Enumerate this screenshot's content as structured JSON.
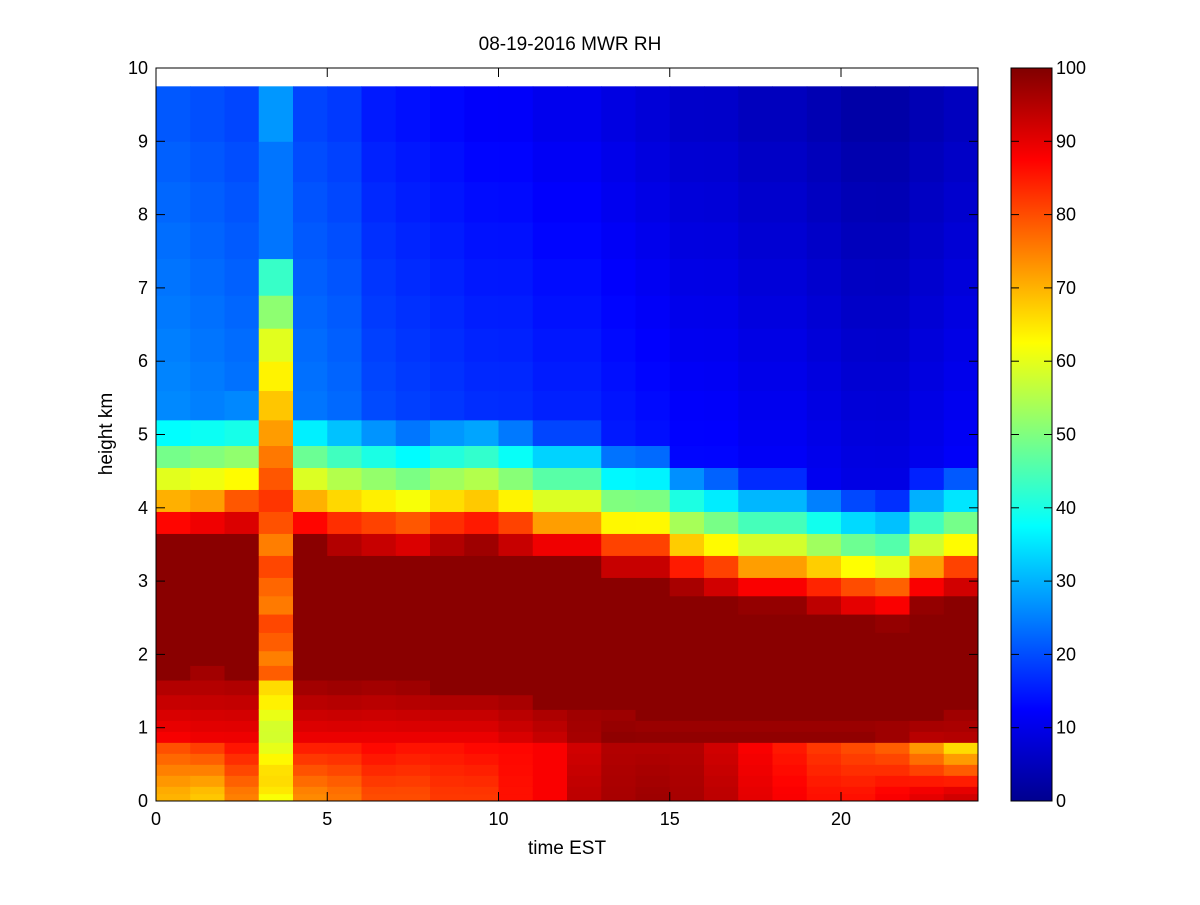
{
  "chart_data": {
    "type": "heatmap",
    "title": "08-19-2016 MWR RH",
    "xlabel": "time EST",
    "ylabel": "height km",
    "xlim": [
      0,
      24
    ],
    "ylim": [
      0,
      10
    ],
    "xticks": [
      0,
      5,
      10,
      15,
      20
    ],
    "yticks": [
      0,
      1,
      2,
      3,
      4,
      5,
      6,
      7,
      8,
      9,
      10
    ],
    "colorbar": {
      "min": 0,
      "max": 100,
      "ticks": [
        0,
        10,
        20,
        30,
        40,
        50,
        60,
        70,
        80,
        90,
        100
      ],
      "colormap": "jet"
    },
    "time_start": 0,
    "time_step": 1,
    "time_bins": 24,
    "height_top": 9.75,
    "height_levels_km": [
      0,
      0.1,
      0.2,
      0.35,
      0.5,
      0.65,
      0.8,
      0.95,
      1.1,
      1.25,
      1.45,
      1.65,
      1.85,
      2.05,
      2.3,
      2.55,
      2.8,
      3.05,
      3.35,
      3.65,
      3.95,
      4.25,
      4.55,
      4.85,
      5.2,
      5.6,
      6.0,
      6.45,
      6.9,
      7.4,
      7.9,
      8.45,
      9.0,
      9.75
    ],
    "peak_low_rh": [
      80,
      82,
      86,
      35,
      85,
      85,
      87,
      86,
      86,
      87,
      87,
      88,
      92,
      95,
      95,
      95,
      92,
      88,
      85,
      82,
      80,
      78,
      72,
      65
    ],
    "surface_rh": [
      70,
      68,
      75,
      62,
      74,
      76,
      80,
      80,
      82,
      82,
      86,
      88,
      94,
      96,
      97,
      96,
      94,
      90,
      88,
      86,
      86,
      88,
      90,
      92
    ],
    "low_dip_rh": [
      87,
      88,
      88,
      65,
      88,
      88,
      88,
      88,
      88,
      88,
      90,
      92,
      96,
      99,
      99,
      99,
      99,
      99,
      99,
      99,
      99,
      97,
      93,
      94
    ],
    "lower_moist_top_km": [
      1.75,
      1.8,
      1.75,
      1.9,
      1.6,
      1.55,
      1.6,
      1.55,
      1.5,
      1.5,
      1.45,
      1.35,
      1.3,
      1.2,
      1.1,
      1.1,
      1.1,
      1.1,
      1.1,
      1.1,
      1.1,
      1.1,
      1.1,
      1.2
    ],
    "moist_layer_top_km": [
      4.05,
      4.1,
      4.15,
      4.0,
      4.05,
      3.95,
      3.9,
      3.85,
      3.95,
      4.0,
      3.9,
      3.8,
      3.8,
      3.6,
      3.6,
      3.4,
      3.3,
      3.2,
      3.2,
      3.1,
      3.0,
      2.95,
      3.2,
      3.3
    ],
    "rh_aloft": [
      18,
      17,
      16,
      70,
      16,
      15,
      12,
      11,
      10,
      9,
      9,
      8,
      8,
      7,
      6,
      5,
      5,
      4,
      4,
      3,
      2,
      2,
      3,
      4
    ],
    "morning_column_profile": {
      "time_index": 3,
      "surface_rh": 62,
      "low_band_rh": 62,
      "mid_rh": 78,
      "mid_layer_top_km": 3.95,
      "upper_rh": 60,
      "top_rh": 30
    }
  }
}
